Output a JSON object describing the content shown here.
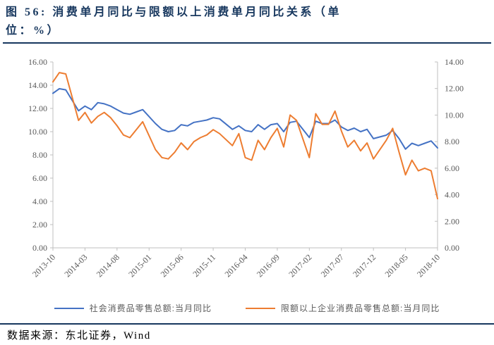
{
  "page": {
    "title_line1": "图 56: 消费单月同比与限额以上消费单月同比关系（单",
    "title_line2": "位：%）",
    "footer": "数据来源：东北证券，Wind"
  },
  "colors": {
    "series_blue": "#4472C4",
    "series_orange": "#ED7D31",
    "title_text": "#17375E",
    "rule": "#17375E",
    "axis_line": "#BFBFBF",
    "axis_text": "#595959"
  },
  "chart_data": {
    "type": "line",
    "title": "消费单月同比与限额以上消费单月同比关系（单位：%）",
    "grid": false,
    "legend_position": "bottom",
    "categories": [
      "2013-10",
      "2013-11",
      "2013-12",
      "2014-01",
      "2014-02",
      "2014-03",
      "2014-04",
      "2014-05",
      "2014-06",
      "2014-07",
      "2014-08",
      "2014-09",
      "2014-10",
      "2014-11",
      "2014-12",
      "2015-01",
      "2015-02",
      "2015-03",
      "2015-04",
      "2015-05",
      "2015-06",
      "2015-07",
      "2015-08",
      "2015-09",
      "2015-10",
      "2015-11",
      "2015-12",
      "2016-01",
      "2016-02",
      "2016-03",
      "2016-04",
      "2016-05",
      "2016-06",
      "2016-07",
      "2016-08",
      "2016-09",
      "2016-10",
      "2016-11",
      "2016-12",
      "2017-01",
      "2017-02",
      "2017-03",
      "2017-04",
      "2017-05",
      "2017-06",
      "2017-07",
      "2017-08",
      "2017-09",
      "2017-10",
      "2017-11",
      "2017-12",
      "2018-01",
      "2018-02",
      "2018-03",
      "2018-04",
      "2018-05",
      "2018-06",
      "2018-07",
      "2018-08",
      "2018-09",
      "2018-10"
    ],
    "x_tick_labels": [
      "2013-10",
      "2014-03",
      "2014-08",
      "2015-01",
      "2015-06",
      "2015-11",
      "2016-04",
      "2016-09",
      "2017-02",
      "2017-07",
      "2017-12",
      "2018-05",
      "2018-10"
    ],
    "x_tick_every": 5,
    "left_axis": {
      "min": 0,
      "max": 16,
      "step": 2,
      "tick_labels": [
        "16.00",
        "14.00",
        "12.00",
        "10.00",
        "8.00",
        "6.00",
        "4.00",
        "2.00",
        "0.00"
      ]
    },
    "right_axis": {
      "min": 0,
      "max": 14,
      "step": 2,
      "tick_labels": [
        "14.00",
        "12.00",
        "10.00",
        "8.00",
        "6.00",
        "4.00",
        "2.00",
        "0.00"
      ]
    },
    "series": [
      {
        "name": "社会消费品零售总额:当月同比",
        "color": "#4472C4",
        "axis": "left",
        "values": [
          13.3,
          13.7,
          13.6,
          null,
          11.8,
          12.2,
          11.9,
          12.5,
          12.4,
          12.2,
          11.9,
          11.6,
          11.5,
          11.7,
          11.9,
          null,
          10.7,
          10.2,
          10.0,
          10.1,
          10.6,
          10.5,
          10.8,
          10.9,
          11.0,
          11.2,
          11.1,
          null,
          10.2,
          10.5,
          10.1,
          10.0,
          10.6,
          10.2,
          10.6,
          10.7,
          10.0,
          10.8,
          10.9,
          null,
          9.5,
          10.9,
          10.7,
          10.7,
          11.0,
          10.4,
          10.1,
          10.3,
          10.0,
          10.2,
          9.4,
          null,
          9.7,
          10.1,
          9.4,
          8.5,
          9.0,
          8.8,
          9.0,
          9.2,
          8.6
        ]
      },
      {
        "name": "限额以上企业消费品零售总额:当月同比",
        "color": "#ED7D31",
        "axis": "right",
        "values": [
          12.5,
          13.2,
          13.1,
          null,
          9.6,
          10.2,
          9.4,
          9.9,
          10.2,
          9.8,
          9.2,
          8.5,
          8.3,
          8.9,
          9.5,
          null,
          7.4,
          6.8,
          6.7,
          7.2,
          7.9,
          7.4,
          8.0,
          8.3,
          8.5,
          8.9,
          8.6,
          null,
          7.7,
          8.6,
          6.8,
          6.6,
          8.1,
          7.4,
          8.3,
          9.0,
          7.6,
          10.0,
          9.6,
          null,
          6.8,
          10.1,
          9.3,
          9.3,
          10.3,
          8.8,
          7.6,
          8.1,
          7.3,
          7.9,
          6.7,
          null,
          8.1,
          9.0,
          7.2,
          5.5,
          6.6,
          5.8,
          6.0,
          5.8,
          3.7
        ]
      }
    ]
  }
}
